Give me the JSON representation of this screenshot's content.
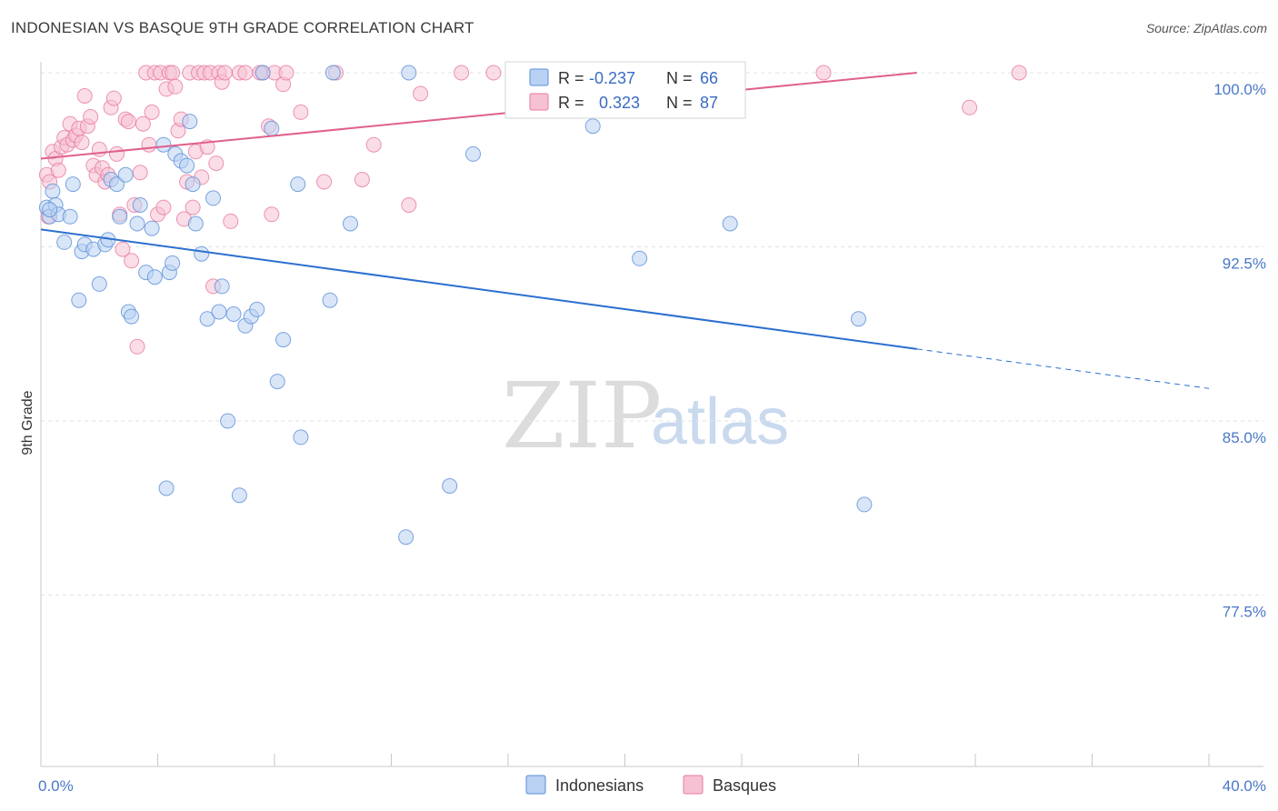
{
  "title": "INDONESIAN VS BASQUE 9TH GRADE CORRELATION CHART",
  "source": "Source: ZipAtlas.com",
  "watermark": {
    "zip": "ZIP",
    "atlas": "atlas"
  },
  "colors": {
    "indonesians": "#5b8fd8",
    "indonesians_fill": "#b9d1f3",
    "basques": "#e87aa0",
    "basques_fill": "#f6c1d3",
    "blue_line": "#2b6fd0",
    "pink_line": "#e0608c",
    "tick_text": "#4a78c8",
    "grid": "#e3e3e3"
  },
  "stats": [
    {
      "key": "indonesians",
      "r_label": "R =",
      "r_value": "-0.237",
      "n_label": "N =",
      "n_value": "66"
    },
    {
      "key": "basques",
      "r_label": "R =",
      "r_value": "0.323",
      "n_label": "N =",
      "n_value": "87"
    }
  ],
  "chart_data": {
    "type": "scatter",
    "title": "INDONESIAN VS BASQUE 9TH GRADE CORRELATION CHART",
    "xlabel": "",
    "ylabel": "9th Grade",
    "xlim": [
      0,
      40
    ],
    "ylim": [
      70.0,
      100.6
    ],
    "x_tick_labels": [
      "0.0%",
      "40.0%"
    ],
    "y_ticks": [
      100.0,
      92.5,
      85.0,
      77.5
    ],
    "y_tick_labels": [
      "100.0%",
      "92.5%",
      "85.0%",
      "77.5%"
    ],
    "grid": "horizontal dashed",
    "legend_position": "bottom-center",
    "series": [
      {
        "name": "Indonesians",
        "r": -0.237,
        "n": 66,
        "trend": {
          "x0": 0,
          "y0": 93.25,
          "x1": 30.0,
          "y1": 88.1,
          "dashed_to_x": 40,
          "dashed_to_y": 86.4
        },
        "points": [
          [
            0.2,
            94.2
          ],
          [
            0.3,
            93.8
          ],
          [
            0.4,
            94.9
          ],
          [
            0.5,
            94.3
          ],
          [
            0.6,
            93.9
          ],
          [
            0.8,
            92.7
          ],
          [
            1.0,
            93.8
          ],
          [
            1.1,
            95.2
          ],
          [
            1.3,
            90.2
          ],
          [
            1.4,
            92.3
          ],
          [
            1.5,
            92.6
          ],
          [
            1.8,
            92.4
          ],
          [
            2.0,
            90.9
          ],
          [
            2.2,
            92.6
          ],
          [
            2.3,
            92.8
          ],
          [
            2.4,
            95.4
          ],
          [
            2.6,
            95.2
          ],
          [
            2.7,
            93.8
          ],
          [
            2.9,
            95.6
          ],
          [
            3.0,
            89.7
          ],
          [
            3.1,
            89.5
          ],
          [
            3.3,
            93.5
          ],
          [
            3.4,
            94.3
          ],
          [
            3.6,
            91.4
          ],
          [
            3.8,
            93.3
          ],
          [
            3.9,
            91.2
          ],
          [
            4.2,
            96.9
          ],
          [
            4.3,
            82.1
          ],
          [
            4.4,
            91.4
          ],
          [
            4.5,
            91.8
          ],
          [
            4.6,
            96.5
          ],
          [
            4.8,
            96.2
          ],
          [
            5.0,
            96.0
          ],
          [
            5.1,
            97.9
          ],
          [
            5.2,
            95.2
          ],
          [
            5.3,
            93.5
          ],
          [
            5.5,
            92.2
          ],
          [
            5.7,
            89.4
          ],
          [
            5.9,
            94.6
          ],
          [
            6.1,
            89.7
          ],
          [
            6.2,
            90.8
          ],
          [
            6.4,
            85.0
          ],
          [
            6.6,
            89.6
          ],
          [
            6.8,
            81.8
          ],
          [
            7.0,
            89.1
          ],
          [
            7.2,
            89.5
          ],
          [
            7.4,
            89.8
          ],
          [
            7.6,
            100.0
          ],
          [
            7.9,
            97.6
          ],
          [
            8.1,
            86.7
          ],
          [
            8.3,
            88.5
          ],
          [
            8.8,
            95.2
          ],
          [
            8.9,
            84.3
          ],
          [
            9.9,
            90.2
          ],
          [
            10.0,
            100.0
          ],
          [
            10.6,
            93.5
          ],
          [
            12.5,
            80.0
          ],
          [
            12.6,
            100.0
          ],
          [
            14.0,
            82.2
          ],
          [
            14.8,
            96.5
          ],
          [
            18.9,
            97.7
          ],
          [
            20.5,
            92.0
          ],
          [
            23.6,
            93.5
          ],
          [
            28.0,
            89.4
          ],
          [
            28.2,
            81.4
          ],
          [
            0.3,
            94.1
          ]
        ]
      },
      {
        "name": "Basques",
        "r": 0.323,
        "n": 87,
        "trend": {
          "x0": 0,
          "y0": 96.3,
          "x1": 30.0,
          "y1": 100.0
        },
        "points": [
          [
            0.2,
            95.6
          ],
          [
            0.3,
            95.3
          ],
          [
            0.4,
            96.6
          ],
          [
            0.5,
            96.3
          ],
          [
            0.6,
            95.8
          ],
          [
            0.7,
            96.8
          ],
          [
            0.8,
            97.2
          ],
          [
            0.9,
            96.9
          ],
          [
            1.0,
            97.8
          ],
          [
            1.1,
            97.1
          ],
          [
            1.2,
            97.3
          ],
          [
            1.3,
            97.6
          ],
          [
            1.4,
            97.0
          ],
          [
            1.5,
            99.0
          ],
          [
            1.6,
            97.7
          ],
          [
            1.7,
            98.1
          ],
          [
            1.8,
            96.0
          ],
          [
            1.9,
            95.6
          ],
          [
            2.0,
            96.7
          ],
          [
            2.1,
            95.9
          ],
          [
            2.2,
            95.3
          ],
          [
            2.3,
            95.6
          ],
          [
            2.4,
            98.5
          ],
          [
            2.5,
            98.9
          ],
          [
            2.6,
            96.5
          ],
          [
            2.7,
            93.9
          ],
          [
            2.8,
            92.4
          ],
          [
            2.9,
            98.0
          ],
          [
            3.0,
            97.9
          ],
          [
            3.1,
            91.9
          ],
          [
            3.2,
            94.3
          ],
          [
            3.3,
            88.2
          ],
          [
            3.4,
            95.7
          ],
          [
            3.5,
            97.8
          ],
          [
            3.6,
            100.0
          ],
          [
            3.7,
            96.9
          ],
          [
            3.8,
            98.3
          ],
          [
            3.9,
            100.0
          ],
          [
            4.0,
            93.9
          ],
          [
            4.1,
            100.0
          ],
          [
            4.2,
            94.2
          ],
          [
            4.3,
            99.3
          ],
          [
            4.4,
            100.0
          ],
          [
            4.5,
            100.0
          ],
          [
            4.6,
            99.4
          ],
          [
            4.7,
            97.5
          ],
          [
            4.8,
            98.0
          ],
          [
            4.9,
            93.7
          ],
          [
            5.0,
            95.3
          ],
          [
            5.1,
            100.0
          ],
          [
            5.2,
            94.2
          ],
          [
            5.3,
            96.6
          ],
          [
            5.4,
            100.0
          ],
          [
            5.5,
            95.5
          ],
          [
            5.6,
            100.0
          ],
          [
            5.7,
            96.8
          ],
          [
            5.8,
            100.0
          ],
          [
            5.9,
            90.8
          ],
          [
            6.0,
            96.1
          ],
          [
            6.1,
            100.0
          ],
          [
            6.2,
            99.6
          ],
          [
            6.3,
            100.0
          ],
          [
            6.5,
            93.6
          ],
          [
            6.8,
            100.0
          ],
          [
            7.0,
            100.0
          ],
          [
            7.6,
            100.0
          ],
          [
            7.8,
            97.7
          ],
          [
            7.9,
            93.9
          ],
          [
            8.0,
            100.0
          ],
          [
            8.3,
            99.5
          ],
          [
            8.4,
            100.0
          ],
          [
            8.9,
            98.3
          ],
          [
            9.7,
            95.3
          ],
          [
            10.1,
            100.0
          ],
          [
            11.0,
            95.4
          ],
          [
            11.4,
            96.9
          ],
          [
            12.6,
            94.3
          ],
          [
            13.0,
            99.1
          ],
          [
            14.4,
            100.0
          ],
          [
            15.5,
            100.0
          ],
          [
            18.5,
            100.0
          ],
          [
            19.2,
            100.0
          ],
          [
            26.8,
            100.0
          ],
          [
            31.8,
            98.5
          ],
          [
            33.5,
            100.0
          ],
          [
            7.5,
            100.0
          ],
          [
            0.25,
            93.8
          ]
        ]
      }
    ]
  },
  "legend": {
    "items": [
      {
        "key": "indonesians",
        "label": "Indonesians"
      },
      {
        "key": "basques",
        "label": "Basques"
      }
    ]
  }
}
